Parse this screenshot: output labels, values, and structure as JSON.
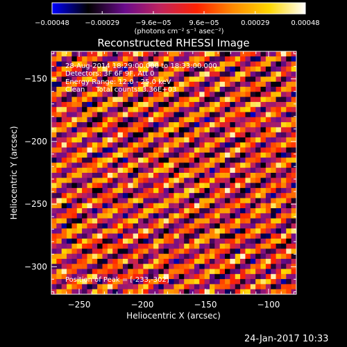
{
  "chart_data": {
    "type": "heatmap",
    "title": "Reconstructed RHESSI Image",
    "xlabel": "Heliocentric X (arcsec)",
    "ylabel": "Heliocentric Y (arcsec)",
    "xlim": [
      -272,
      -78
    ],
    "ylim": [
      -322,
      -128
    ],
    "x_ticks": [
      -250,
      -200,
      -150,
      -100
    ],
    "y_ticks": [
      -300,
      -250,
      -200,
      -150
    ],
    "x_tick_labels": [
      "−250",
      "−200",
      "−150",
      "−100"
    ],
    "y_tick_labels": [
      "−300",
      "−250",
      "−200",
      "−150"
    ],
    "grid_size": 48,
    "stripe_slope": 0.5,
    "stripe_period_cells": 3.6,
    "colorbar": {
      "label": "(photons cm⁻² s⁻¹ asec⁻²)",
      "ticks": [
        -0.00048,
        -0.00029,
        -9.6e-05,
        9.6e-05,
        0.00029,
        0.00048
      ],
      "tick_labels": [
        "−0.00048",
        "−0.00029",
        "−9.6e−05",
        "9.6e−05",
        "0.00029",
        "0.00048"
      ],
      "range": [
        -0.00048,
        0.00048
      ],
      "colors": [
        "#0000ff",
        "#000000",
        "#6a0b8c",
        "#c0235c",
        "#ff2200",
        "#ff8a00",
        "#ffd700",
        "#ffffff"
      ]
    },
    "annotations": {
      "time_range": "28-Aug-2014 18:29:00.000 to 18:33:00.000",
      "detectors": "Detectors: 3F 6F 9F, Att 0",
      "energy": "Energy Range: 12.0 - 25.0 keV",
      "clean": "Clean     Total counts: 3.36E+03",
      "peak": "Position of Peak = [-233,-302]"
    }
  },
  "timestamp": "24-Jan-2017 10:33"
}
